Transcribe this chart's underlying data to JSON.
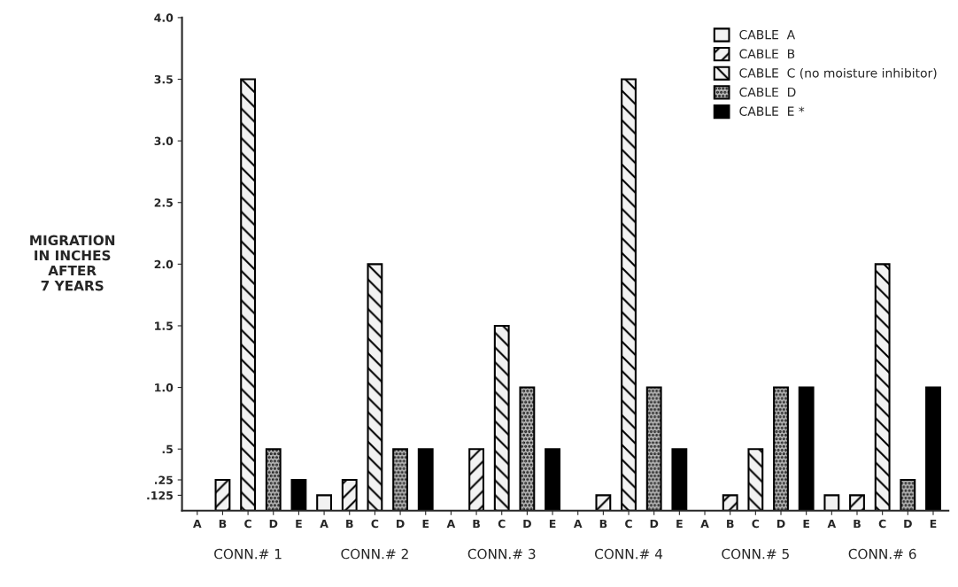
{
  "chart_data": {
    "type": "bar",
    "ylabel": "MIGRATION\nIN INCHES\nAFTER\n7 YEARS",
    "categories": [
      "A",
      "B",
      "C",
      "D",
      "E",
      "A",
      "B",
      "C",
      "D",
      "E",
      "A",
      "B",
      "C",
      "D",
      "E",
      "A",
      "B",
      "C",
      "D",
      "E",
      "A",
      "B",
      "C",
      "D",
      "E",
      "A",
      "B",
      "C",
      "D",
      "E"
    ],
    "series": [
      {
        "name": "CABLE  A",
        "color": "#f2f2f2",
        "values": [
          0,
          null,
          null,
          null,
          null,
          0.125,
          null,
          null,
          null,
          null,
          0,
          null,
          null,
          null,
          null,
          0,
          null,
          null,
          null,
          null,
          0,
          null,
          null,
          null,
          null,
          0.125,
          null,
          null,
          null,
          null
        ]
      },
      {
        "name": "CABLE  B",
        "color": "#f2f2f2",
        "values": [
          null,
          0.25,
          null,
          null,
          null,
          null,
          0.25,
          null,
          null,
          null,
          null,
          0.5,
          null,
          null,
          null,
          null,
          0.125,
          null,
          null,
          null,
          null,
          0.125,
          null,
          null,
          null,
          null,
          0.125,
          null,
          null,
          null
        ]
      },
      {
        "name": "CABLE  C (no moisture inhibitor)",
        "color": "#f2f2f2",
        "values": [
          null,
          null,
          3.5,
          null,
          null,
          null,
          null,
          2.0,
          null,
          null,
          null,
          null,
          1.5,
          null,
          null,
          null,
          null,
          3.5,
          null,
          null,
          null,
          null,
          0.5,
          null,
          null,
          null,
          null,
          2.0,
          null,
          null
        ]
      },
      {
        "name": "CABLE  D",
        "color": "#b8b8b8",
        "values": [
          null,
          null,
          null,
          0.5,
          null,
          null,
          null,
          null,
          0.5,
          null,
          null,
          null,
          null,
          1.0,
          null,
          null,
          null,
          null,
          1.0,
          null,
          null,
          null,
          null,
          1.0,
          null,
          null,
          null,
          null,
          0.25,
          null
        ]
      },
      {
        "name": "CABLE  E *",
        "color": "#000000",
        "values": [
          null,
          null,
          null,
          null,
          0.25,
          null,
          null,
          null,
          null,
          0.5,
          null,
          null,
          null,
          null,
          0.5,
          null,
          null,
          null,
          null,
          0.5,
          null,
          null,
          null,
          null,
          1.0,
          null,
          null,
          null,
          null,
          1.0
        ]
      }
    ],
    "ylim": [
      0,
      4.0
    ],
    "yticks": [
      {
        "value": 0.125,
        "label": ".125"
      },
      {
        "value": 0.25,
        "label": ".25"
      },
      {
        "value": 0.5,
        "label": ".5"
      },
      {
        "value": 1,
        "label": "1.0"
      },
      1.5,
      {
        "value": 2,
        "label": "2.0"
      },
      2.5,
      {
        "value": 3,
        "label": "3.0"
      },
      3.5,
      {
        "value": 4,
        "label": "4.0"
      }
    ],
    "annotations": [
      "CONN.# 1",
      "CONN.# 2",
      "CONN.# 3",
      "CONN.# 4",
      "CONN.# 5",
      "CONN.# 6"
    ],
    "legend": "top right",
    "grid": false
  }
}
